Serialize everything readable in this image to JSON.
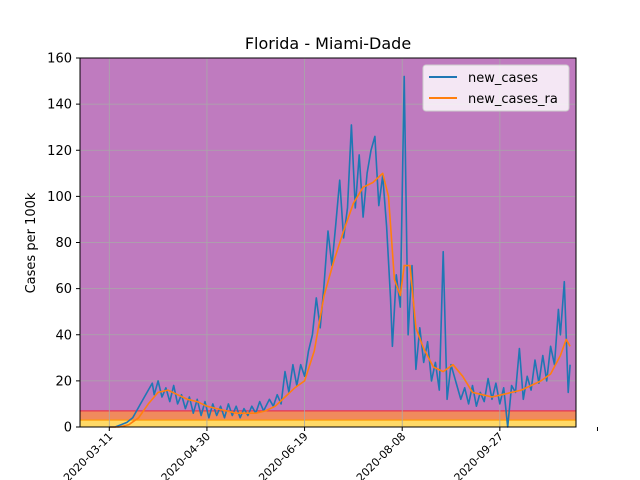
{
  "chart_data": {
    "type": "line",
    "title": "Florida - Miami-Dade",
    "xlabel": "",
    "ylabel": "Cases per 100k",
    "ylim": [
      0,
      160
    ],
    "yticks": [
      0,
      20,
      40,
      60,
      80,
      100,
      120,
      140,
      160
    ],
    "xlim": [
      "2020-02-25",
      "2020-11-05"
    ],
    "xticks": [
      "2020-03-11",
      "2020-04-30",
      "2020-06-19",
      "2020-08-08",
      "2020-09-27",
      "2020-11-16"
    ],
    "xtick_labels": [
      "2020-03-11",
      "2020-04-30",
      "2020-06-19",
      "2020-08-08",
      "2020-09-27",
      ""
    ],
    "grid": true,
    "legend_position": "top-right",
    "background_color": "#bf7bbf",
    "bands": [
      {
        "from": 0,
        "to": 3,
        "color": "#ffd966"
      },
      {
        "from": 3,
        "to": 7,
        "color": "#f08a5d"
      }
    ],
    "threshold_lines": [
      {
        "y": 3,
        "color": "#ff9900"
      },
      {
        "y": 7,
        "color": "#e8384f"
      }
    ],
    "series": [
      {
        "name": "new_cases",
        "color": "#1f77b4",
        "points": [
          [
            "2020-03-11",
            0
          ],
          [
            "2020-03-14",
            0
          ],
          [
            "2020-03-17",
            1
          ],
          [
            "2020-03-20",
            2
          ],
          [
            "2020-03-23",
            4
          ],
          [
            "2020-03-25",
            7
          ],
          [
            "2020-03-27",
            10
          ],
          [
            "2020-03-29",
            13
          ],
          [
            "2020-03-31",
            16
          ],
          [
            "2020-04-02",
            19
          ],
          [
            "2020-04-03",
            14
          ],
          [
            "2020-04-05",
            20
          ],
          [
            "2020-04-07",
            13
          ],
          [
            "2020-04-09",
            17
          ],
          [
            "2020-04-11",
            11
          ],
          [
            "2020-04-13",
            18
          ],
          [
            "2020-04-15",
            10
          ],
          [
            "2020-04-17",
            14
          ],
          [
            "2020-04-19",
            8
          ],
          [
            "2020-04-21",
            13
          ],
          [
            "2020-04-23",
            6
          ],
          [
            "2020-04-25",
            12
          ],
          [
            "2020-04-27",
            5
          ],
          [
            "2020-04-29",
            11
          ],
          [
            "2020-05-01",
            4
          ],
          [
            "2020-05-03",
            10
          ],
          [
            "2020-05-05",
            5
          ],
          [
            "2020-05-07",
            9
          ],
          [
            "2020-05-09",
            4
          ],
          [
            "2020-05-11",
            10
          ],
          [
            "2020-05-13",
            5
          ],
          [
            "2020-05-15",
            9
          ],
          [
            "2020-05-17",
            4
          ],
          [
            "2020-05-19",
            8
          ],
          [
            "2020-05-21",
            5
          ],
          [
            "2020-05-23",
            9
          ],
          [
            "2020-05-25",
            6
          ],
          [
            "2020-05-27",
            11
          ],
          [
            "2020-05-29",
            7
          ],
          [
            "2020-06-01",
            12
          ],
          [
            "2020-06-03",
            9
          ],
          [
            "2020-06-05",
            14
          ],
          [
            "2020-06-07",
            10
          ],
          [
            "2020-06-09",
            24
          ],
          [
            "2020-06-11",
            15
          ],
          [
            "2020-06-13",
            27
          ],
          [
            "2020-06-15",
            18
          ],
          [
            "2020-06-17",
            27
          ],
          [
            "2020-06-19",
            22
          ],
          [
            "2020-06-21",
            33
          ],
          [
            "2020-06-23",
            40
          ],
          [
            "2020-06-25",
            56
          ],
          [
            "2020-06-27",
            43
          ],
          [
            "2020-06-29",
            62
          ],
          [
            "2020-07-01",
            85
          ],
          [
            "2020-07-03",
            70
          ],
          [
            "2020-07-05",
            88
          ],
          [
            "2020-07-07",
            107
          ],
          [
            "2020-07-09",
            82
          ],
          [
            "2020-07-11",
            95
          ],
          [
            "2020-07-13",
            131
          ],
          [
            "2020-07-15",
            95
          ],
          [
            "2020-07-17",
            118
          ],
          [
            "2020-07-19",
            91
          ],
          [
            "2020-07-21",
            110
          ],
          [
            "2020-07-23",
            120
          ],
          [
            "2020-07-25",
            126
          ],
          [
            "2020-07-27",
            96
          ],
          [
            "2020-07-29",
            109
          ],
          [
            "2020-07-31",
            87
          ],
          [
            "2020-08-02",
            56
          ],
          [
            "2020-08-03",
            35
          ],
          [
            "2020-08-05",
            66
          ],
          [
            "2020-08-07",
            52
          ],
          [
            "2020-08-09",
            152
          ],
          [
            "2020-08-11",
            40
          ],
          [
            "2020-08-13",
            70
          ],
          [
            "2020-08-15",
            25
          ],
          [
            "2020-08-17",
            43
          ],
          [
            "2020-08-19",
            28
          ],
          [
            "2020-08-21",
            37
          ],
          [
            "2020-08-23",
            20
          ],
          [
            "2020-08-25",
            28
          ],
          [
            "2020-08-27",
            16
          ],
          [
            "2020-08-29",
            76
          ],
          [
            "2020-08-31",
            12
          ],
          [
            "2020-09-02",
            27
          ],
          [
            "2020-09-05",
            18
          ],
          [
            "2020-09-07",
            12
          ],
          [
            "2020-09-09",
            17
          ],
          [
            "2020-09-11",
            10
          ],
          [
            "2020-09-13",
            18
          ],
          [
            "2020-09-15",
            9
          ],
          [
            "2020-09-17",
            15
          ],
          [
            "2020-09-19",
            11
          ],
          [
            "2020-09-21",
            21
          ],
          [
            "2020-09-23",
            12
          ],
          [
            "2020-09-25",
            19
          ],
          [
            "2020-09-27",
            10
          ],
          [
            "2020-09-29",
            17
          ],
          [
            "2020-10-01",
            0
          ],
          [
            "2020-10-03",
            18
          ],
          [
            "2020-10-05",
            15
          ],
          [
            "2020-10-07",
            34
          ],
          [
            "2020-10-09",
            12
          ],
          [
            "2020-10-11",
            22
          ],
          [
            "2020-10-13",
            16
          ],
          [
            "2020-10-15",
            29
          ],
          [
            "2020-10-17",
            19
          ],
          [
            "2020-10-19",
            31
          ],
          [
            "2020-10-21",
            20
          ],
          [
            "2020-10-23",
            35
          ],
          [
            "2020-10-25",
            27
          ],
          [
            "2020-10-27",
            51
          ],
          [
            "2020-10-28",
            40
          ],
          [
            "2020-10-30",
            63
          ],
          [
            "2020-11-01",
            15
          ],
          [
            "2020-11-02",
            27
          ]
        ]
      },
      {
        "name": "new_cases_ra",
        "color": "#ff7f0e",
        "points": [
          [
            "2020-03-11",
            0
          ],
          [
            "2020-03-16",
            0
          ],
          [
            "2020-03-21",
            1
          ],
          [
            "2020-03-26",
            4
          ],
          [
            "2020-03-31",
            10
          ],
          [
            "2020-04-05",
            15
          ],
          [
            "2020-04-10",
            16
          ],
          [
            "2020-04-15",
            14
          ],
          [
            "2020-04-20",
            12
          ],
          [
            "2020-04-25",
            11
          ],
          [
            "2020-04-30",
            9
          ],
          [
            "2020-05-05",
            8
          ],
          [
            "2020-05-10",
            7
          ],
          [
            "2020-05-15",
            6
          ],
          [
            "2020-05-20",
            6
          ],
          [
            "2020-05-25",
            6
          ],
          [
            "2020-05-30",
            7
          ],
          [
            "2020-06-04",
            9
          ],
          [
            "2020-06-09",
            13
          ],
          [
            "2020-06-14",
            17
          ],
          [
            "2020-06-19",
            20
          ],
          [
            "2020-06-24",
            33
          ],
          [
            "2020-06-29",
            57
          ],
          [
            "2020-07-04",
            72
          ],
          [
            "2020-07-09",
            85
          ],
          [
            "2020-07-14",
            97
          ],
          [
            "2020-07-19",
            104
          ],
          [
            "2020-07-24",
            106
          ],
          [
            "2020-07-29",
            110
          ],
          [
            "2020-08-01",
            100
          ],
          [
            "2020-08-04",
            64
          ],
          [
            "2020-08-07",
            57
          ],
          [
            "2020-08-09",
            70
          ],
          [
            "2020-08-12",
            70
          ],
          [
            "2020-08-15",
            43
          ],
          [
            "2020-08-19",
            34
          ],
          [
            "2020-08-24",
            26
          ],
          [
            "2020-08-29",
            24
          ],
          [
            "2020-09-03",
            27
          ],
          [
            "2020-09-08",
            22
          ],
          [
            "2020-09-13",
            15
          ],
          [
            "2020-09-18",
            14
          ],
          [
            "2020-09-23",
            13
          ],
          [
            "2020-09-28",
            14
          ],
          [
            "2020-10-03",
            15
          ],
          [
            "2020-10-08",
            16
          ],
          [
            "2020-10-13",
            18
          ],
          [
            "2020-10-18",
            20
          ],
          [
            "2020-10-23",
            23
          ],
          [
            "2020-10-28",
            31
          ],
          [
            "2020-10-31",
            38
          ],
          [
            "2020-11-02",
            35
          ]
        ]
      }
    ]
  }
}
